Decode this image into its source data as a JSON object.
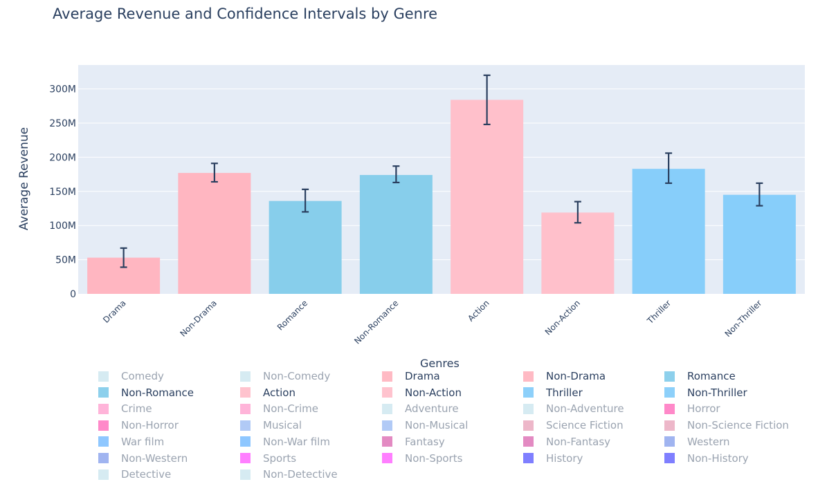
{
  "chart_data": {
    "type": "bar",
    "title": "Average Revenue and Confidence Intervals by Genre",
    "ylabel": "Average Revenue",
    "xlabel": "",
    "ylim": [
      0,
      335000000
    ],
    "ytick_values": [
      0,
      50000000,
      100000000,
      150000000,
      200000000,
      250000000,
      300000000
    ],
    "ytick_labels": [
      "0",
      "50M",
      "100M",
      "150M",
      "200M",
      "250M",
      "300M"
    ],
    "grid": true,
    "bars": [
      {
        "category": "Drama",
        "value": 53000000,
        "ci_low": 39000000,
        "ci_high": 67000000,
        "color": "#ffb6c1"
      },
      {
        "category": "Non-Drama",
        "value": 177000000,
        "ci_low": 164000000,
        "ci_high": 191000000,
        "color": "#ffb6c1"
      },
      {
        "category": "Romance",
        "value": 136000000,
        "ci_low": 120000000,
        "ci_high": 153000000,
        "color": "#87ceeb"
      },
      {
        "category": "Non-Romance",
        "value": 174000000,
        "ci_low": 163000000,
        "ci_high": 187000000,
        "color": "#87ceeb"
      },
      {
        "category": "Action",
        "value": 284000000,
        "ci_low": 248000000,
        "ci_high": 320000000,
        "color": "#ffc0cb"
      },
      {
        "category": "Non-Action",
        "value": 119000000,
        "ci_low": 104000000,
        "ci_high": 135000000,
        "color": "#ffc0cb"
      },
      {
        "category": "Thriller",
        "value": 183000000,
        "ci_low": 162000000,
        "ci_high": 206000000,
        "color": "#87cefa"
      },
      {
        "category": "Non-Thriller",
        "value": 145000000,
        "ci_low": 129000000,
        "ci_high": 162000000,
        "color": "#87cefa"
      }
    ],
    "errorbar_color": "#2a3f5f",
    "legend": {
      "title": "Genres",
      "placement": "bottom",
      "columns": 5,
      "items": [
        {
          "label": "Comedy",
          "color": "#add8e6",
          "active": false
        },
        {
          "label": "Non-Comedy",
          "color": "#add8e6",
          "active": false
        },
        {
          "label": "Drama",
          "color": "#ffb6c1",
          "active": true
        },
        {
          "label": "Non-Drama",
          "color": "#ffb6c1",
          "active": true
        },
        {
          "label": "Romance",
          "color": "#87ceeb",
          "active": true
        },
        {
          "label": "Non-Romance",
          "color": "#87ceeb",
          "active": true
        },
        {
          "label": "Action",
          "color": "#ffc0cb",
          "active": true
        },
        {
          "label": "Non-Action",
          "color": "#ffc0cb",
          "active": true
        },
        {
          "label": "Thriller",
          "color": "#87cefa",
          "active": true
        },
        {
          "label": "Non-Thriller",
          "color": "#87cefa",
          "active": true
        },
        {
          "label": "Crime",
          "color": "#ff69b4",
          "active": false
        },
        {
          "label": "Non-Crime",
          "color": "#ff69b4",
          "active": false
        },
        {
          "label": "Adventure",
          "color": "#add8e6",
          "active": false
        },
        {
          "label": "Non-Adventure",
          "color": "#add8e6",
          "active": false
        },
        {
          "label": "Horror",
          "color": "#ff1493",
          "active": false
        },
        {
          "label": "Non-Horror",
          "color": "#ff1493",
          "active": false
        },
        {
          "label": "Musical",
          "color": "#6495ed",
          "active": false
        },
        {
          "label": "Non-Musical",
          "color": "#6495ed",
          "active": false
        },
        {
          "label": "Science Fiction",
          "color": "#db7093",
          "active": false
        },
        {
          "label": "Non-Science Fiction",
          "color": "#db7093",
          "active": false
        },
        {
          "label": "War film",
          "color": "#1e90ff",
          "active": false
        },
        {
          "label": "Non-War film",
          "color": "#1e90ff",
          "active": false
        },
        {
          "label": "Fantasy",
          "color": "#c71585",
          "active": false
        },
        {
          "label": "Non-Fantasy",
          "color": "#c71585",
          "active": false
        },
        {
          "label": "Western",
          "color": "#4169e1",
          "active": false
        },
        {
          "label": "Non-Western",
          "color": "#4169e1",
          "active": false
        },
        {
          "label": "Sports",
          "color": "#ff00ff",
          "active": false
        },
        {
          "label": "Non-Sports",
          "color": "#ff00ff",
          "active": false
        },
        {
          "label": "History",
          "color": "#0000ff",
          "active": false
        },
        {
          "label": "Non-History",
          "color": "#0000ff",
          "active": false
        },
        {
          "label": "Detective",
          "color": "#add8e6",
          "active": false
        },
        {
          "label": "Non-Detective",
          "color": "#add8e6",
          "active": false
        }
      ]
    }
  }
}
